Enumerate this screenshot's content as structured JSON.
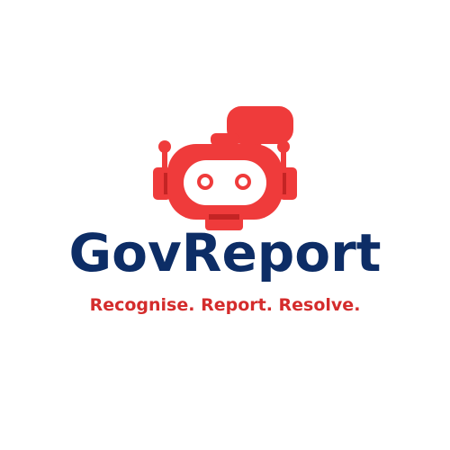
{
  "brand": {
    "name": "GovReport",
    "tagline": "Recognise. Report. Resolve."
  },
  "logo": {
    "icon": "robot-speech-bubble-icon"
  },
  "colors": {
    "background": "#ffffff",
    "brand_navy": "#0d2d66",
    "accent_red": "#ef3b3b",
    "accent_red_dark": "#c42424",
    "tagline_red": "#d42c2c"
  }
}
